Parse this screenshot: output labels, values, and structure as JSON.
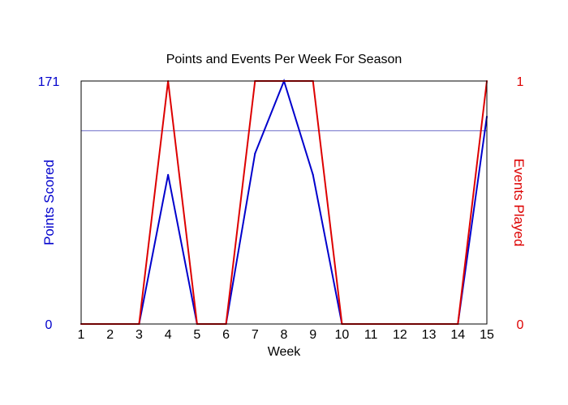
{
  "chart_data": {
    "type": "line",
    "title": "Points and Events Per Week For Season",
    "xlabel": "Week",
    "y_left_label": "Points Scored",
    "y_right_label": "Events Played",
    "x": [
      1,
      2,
      3,
      4,
      5,
      6,
      7,
      8,
      9,
      10,
      11,
      12,
      13,
      14,
      15
    ],
    "x_tick_labels": [
      "1",
      "2",
      "3",
      "4",
      "5",
      "6",
      "7",
      "8",
      "9",
      "10",
      "11",
      "12",
      "13",
      "14",
      "15"
    ],
    "y_left_range": [
      0,
      171
    ],
    "y_left_tick_labels": [
      "0",
      "171"
    ],
    "y_right_range": [
      0,
      1
    ],
    "y_right_tick_labels": [
      "0",
      "1"
    ],
    "reference_line": {
      "axis": "left",
      "value": 136,
      "color": "#6b6bc8"
    },
    "grid": false,
    "legend": "none",
    "series": [
      {
        "axis": "left",
        "color": "#0000cc",
        "values": [
          0,
          0,
          0,
          105,
          0,
          0,
          120,
          171,
          105,
          0,
          0,
          0,
          0,
          0,
          146
        ]
      },
      {
        "axis": "right",
        "color": "#dd0000",
        "values": [
          0,
          0,
          0,
          1,
          0,
          0,
          1,
          1,
          1,
          0,
          0,
          0,
          0,
          0,
          1
        ]
      }
    ]
  }
}
